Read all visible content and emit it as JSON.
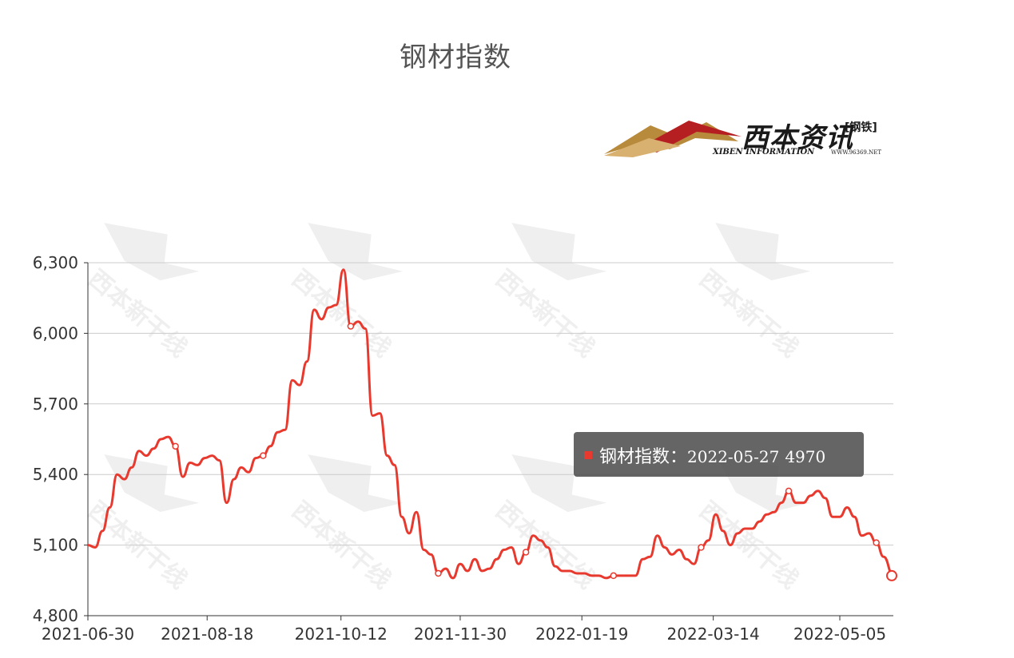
{
  "title": "钢材指数",
  "logo": {
    "brand": "西本资讯",
    "tag": "[钢铁]",
    "english": "XIBEN INFORMATION",
    "url": "WWW.96369.NET"
  },
  "watermark": "西本新干线",
  "colors": {
    "line": "#e8392e",
    "grid": "#cccccc",
    "axis": "#333333"
  },
  "tooltip": {
    "series": "钢材指数：",
    "date": "2022-05-27",
    "value": "4970"
  },
  "chart_data": {
    "type": "line",
    "ylim": [
      4800,
      6300
    ],
    "yticks": [
      "4,800",
      "5,100",
      "5,400",
      "5,700",
      "6,000",
      "6,300"
    ],
    "xticks": [
      "2021-06-30",
      "2021-08-18",
      "2021-10-12",
      "2021-11-30",
      "2022-01-19",
      "2022-03-14",
      "2022-05-05"
    ],
    "series": [
      {
        "name": "钢材指数",
        "x": [
          "2021-06-30",
          "2021-07-03",
          "2021-07-06",
          "2021-07-09",
          "2021-07-12",
          "2021-07-15",
          "2021-07-18",
          "2021-07-21",
          "2021-07-24",
          "2021-07-27",
          "2021-07-30",
          "2021-08-02",
          "2021-08-05",
          "2021-08-08",
          "2021-08-11",
          "2021-08-14",
          "2021-08-17",
          "2021-08-20",
          "2021-08-23",
          "2021-08-26",
          "2021-08-29",
          "2021-09-01",
          "2021-09-04",
          "2021-09-07",
          "2021-09-10",
          "2021-09-13",
          "2021-09-16",
          "2021-09-19",
          "2021-09-22",
          "2021-09-25",
          "2021-09-28",
          "2021-10-01",
          "2021-10-04",
          "2021-10-07",
          "2021-10-10",
          "2021-10-13",
          "2021-10-16",
          "2021-10-19",
          "2021-10-22",
          "2021-10-25",
          "2021-10-28",
          "2021-10-31",
          "2021-11-03",
          "2021-11-06",
          "2021-11-09",
          "2021-11-12",
          "2021-11-15",
          "2021-11-18",
          "2021-11-21",
          "2021-11-24",
          "2021-11-27",
          "2021-11-30",
          "2021-12-03",
          "2021-12-06",
          "2021-12-09",
          "2021-12-12",
          "2021-12-15",
          "2021-12-18",
          "2021-12-21",
          "2021-12-24",
          "2021-12-27",
          "2021-12-30",
          "2022-01-02",
          "2022-01-05",
          "2022-01-08",
          "2022-01-11",
          "2022-01-14",
          "2022-01-17",
          "2022-01-20",
          "2022-01-23",
          "2022-01-26",
          "2022-01-29",
          "2022-02-01",
          "2022-02-04",
          "2022-02-07",
          "2022-02-10",
          "2022-02-13",
          "2022-02-16",
          "2022-02-19",
          "2022-02-22",
          "2022-02-25",
          "2022-02-28",
          "2022-03-03",
          "2022-03-06",
          "2022-03-09",
          "2022-03-12",
          "2022-03-15",
          "2022-03-18",
          "2022-03-21",
          "2022-03-24",
          "2022-03-27",
          "2022-03-30",
          "2022-04-02",
          "2022-04-05",
          "2022-04-08",
          "2022-04-11",
          "2022-04-14",
          "2022-04-17",
          "2022-04-20",
          "2022-04-23",
          "2022-04-26",
          "2022-04-29",
          "2022-05-02",
          "2022-05-05",
          "2022-05-08",
          "2022-05-11",
          "2022-05-14",
          "2022-05-17",
          "2022-05-20",
          "2022-05-23",
          "2022-05-27"
        ],
        "values": [
          5100,
          5090,
          5160,
          5260,
          5400,
          5380,
          5430,
          5500,
          5480,
          5510,
          5550,
          5560,
          5520,
          5390,
          5450,
          5440,
          5470,
          5480,
          5460,
          5280,
          5380,
          5430,
          5410,
          5470,
          5480,
          5520,
          5580,
          5590,
          5800,
          5780,
          5880,
          6100,
          6060,
          6110,
          6120,
          6270,
          6030,
          6050,
          6020,
          5650,
          5660,
          5480,
          5440,
          5220,
          5150,
          5240,
          5080,
          5060,
          4980,
          5000,
          4960,
          5020,
          4990,
          5040,
          4990,
          5000,
          5040,
          5080,
          5090,
          5020,
          5070,
          5140,
          5120,
          5090,
          5010,
          4990,
          4990,
          4980,
          4980,
          4970,
          4970,
          4960,
          4970,
          4970,
          4970,
          4970,
          5040,
          5050,
          5140,
          5090,
          5060,
          5080,
          5040,
          5020,
          5090,
          5120,
          5230,
          5160,
          5100,
          5150,
          5170,
          5170,
          5200,
          5230,
          5240,
          5280,
          5330,
          5280,
          5280,
          5310,
          5330,
          5300,
          5220,
          5220,
          5260,
          5220,
          5140,
          5150,
          5110,
          5050,
          4970
        ]
      }
    ]
  }
}
